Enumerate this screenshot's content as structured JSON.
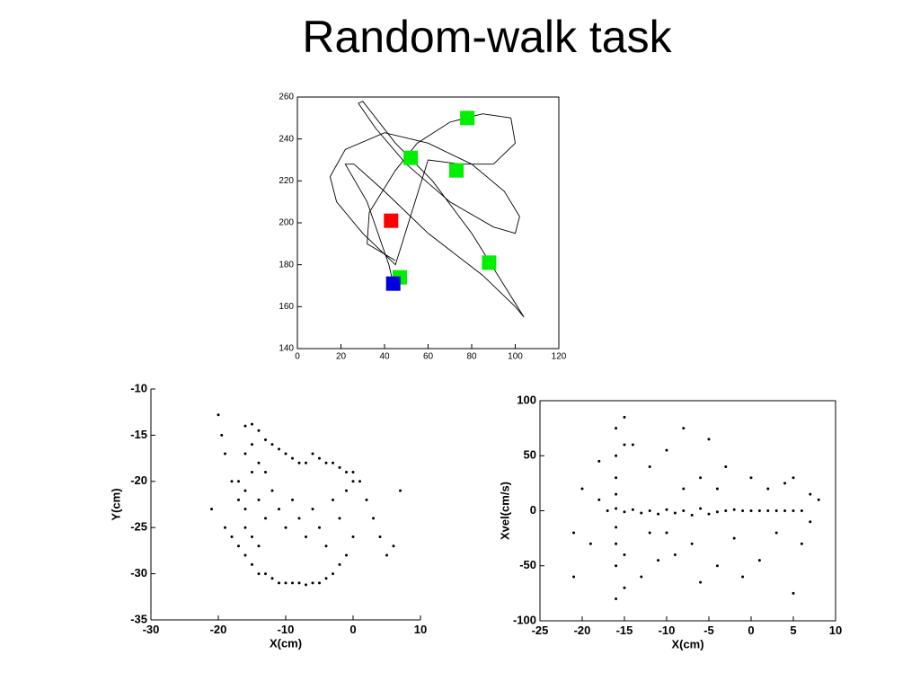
{
  "title": "Random-walk task",
  "chart_data": [
    {
      "type": "line",
      "box": true,
      "xlim": [
        0,
        120
      ],
      "xticks": [
        0,
        20,
        40,
        60,
        80,
        100,
        120
      ],
      "ylim": [
        140,
        260
      ],
      "yticks": [
        140,
        160,
        180,
        200,
        220,
        240,
        260
      ],
      "series": [
        {
          "style": "line",
          "color": "#000000",
          "x": [
            44,
            42,
            32,
            22,
            26,
            40,
            60,
            85,
            100,
            104,
            95,
            80,
            62,
            45,
            30,
            28,
            36,
            50,
            70,
            90,
            100,
            102,
            95,
            80,
            60,
            40,
            22,
            15,
            18,
            30,
            45,
            60,
            75,
            90,
            100,
            98,
            85,
            70,
            55,
            45,
            33,
            32,
            45
          ],
          "values": [
            171,
            180,
            210,
            228,
            228,
            215,
            195,
            175,
            160,
            155,
            170,
            195,
            220,
            238,
            258,
            257,
            245,
            228,
            210,
            198,
            195,
            203,
            215,
            228,
            238,
            243,
            235,
            222,
            210,
            195,
            180,
            230,
            228,
            228,
            238,
            250,
            252,
            248,
            238,
            225,
            205,
            190,
            182
          ]
        },
        {
          "style": "square",
          "color": "#00ee00",
          "x": [
            78,
            52,
            73,
            88,
            47
          ],
          "values": [
            250,
            231,
            225,
            181,
            174
          ]
        },
        {
          "style": "square",
          "color": "#ff0000",
          "x": [
            43
          ],
          "values": [
            201
          ]
        },
        {
          "style": "square",
          "color": "#0000dd",
          "x": [
            44
          ],
          "values": [
            171
          ]
        }
      ]
    },
    {
      "type": "scatter",
      "box": false,
      "color": "#000000",
      "xlabel": "X(cm)",
      "ylabel": "Y(cm)",
      "xlim": [
        -30,
        10
      ],
      "xticks": [
        -30,
        -20,
        -10,
        0,
        10
      ],
      "ylim": [
        -35,
        -10
      ],
      "yticks": [
        -35,
        -30,
        -25,
        -20,
        -15,
        -10
      ],
      "x": [
        -21,
        -20,
        -19.5,
        -19,
        -18,
        -17,
        -16,
        -15,
        -14,
        -13,
        -12,
        -11,
        -10,
        -9,
        -8,
        -7,
        -6,
        -5,
        -4,
        -3,
        -2,
        -1,
        0,
        1,
        2,
        3,
        4,
        5,
        6,
        7,
        -19,
        -18,
        -17,
        -16,
        -15,
        -14,
        -13,
        -12,
        -11,
        -10,
        -9,
        -8,
        -7,
        -6,
        -5,
        -4,
        -3,
        -2,
        -1,
        0,
        -17,
        -16,
        -15,
        -14,
        -13,
        -12,
        -11,
        -10,
        -9,
        -8,
        -7,
        -6,
        -5,
        -4,
        -3,
        -2,
        -1,
        0,
        -16,
        -15,
        -14,
        -13,
        -16,
        -16,
        -15,
        -14
      ],
      "values": [
        -23,
        -12.8,
        -15,
        -17,
        -20,
        -22,
        -14,
        -13.8,
        -14.5,
        -15.5,
        -16,
        -16.5,
        -17,
        -17.5,
        -18,
        -18,
        -17,
        -17.5,
        -18,
        -18,
        -18.5,
        -19,
        -19,
        -20,
        -22,
        -24,
        -26,
        -28,
        -27,
        -21,
        -25,
        -26,
        -27,
        -28,
        -29,
        -30,
        -30,
        -30.5,
        -31,
        -31,
        -31,
        -31,
        -31.2,
        -31,
        -31,
        -30.5,
        -30,
        -29,
        -28,
        -26,
        -20,
        -21,
        -19,
        -22,
        -24,
        -21,
        -23,
        -25,
        -22,
        -24,
        -26,
        -23,
        -25,
        -27,
        -22,
        -24,
        -21,
        -20,
        -17,
        -16,
        -18,
        -19,
        -23,
        -25,
        -26,
        -27
      ]
    },
    {
      "type": "scatter",
      "box": true,
      "color": "#000000",
      "xlabel": "X(cm)",
      "ylabel": "Xvel(cm/s)",
      "xlim": [
        -25,
        10
      ],
      "xticks": [
        -25,
        -20,
        -15,
        -10,
        -5,
        0,
        5,
        10
      ],
      "ylim": [
        -100,
        100
      ],
      "yticks": [
        -100,
        -50,
        0,
        50,
        100
      ],
      "x": [
        -17,
        -16,
        -15,
        -14,
        -13,
        -12,
        -11,
        -10,
        -9,
        -8,
        -7,
        -6,
        -5,
        -4,
        -3,
        -2,
        -1,
        0,
        1,
        2,
        3,
        4,
        5,
        6,
        -16,
        -16,
        -16,
        -16,
        -16,
        -16,
        -16,
        -16,
        -15,
        -15,
        -15,
        -15,
        -21,
        -21,
        -20,
        -19,
        -18,
        -18,
        -14,
        -13,
        -12,
        -11,
        -10,
        -9,
        -8,
        -7,
        -6,
        -6,
        -5,
        -4,
        -3,
        -2,
        -1,
        0,
        1,
        2,
        3,
        4,
        5,
        5,
        6,
        7,
        8,
        7,
        -12,
        -10,
        -8,
        -4
      ],
      "values": [
        0,
        2,
        -1,
        1,
        -2,
        0,
        -3,
        1,
        -2,
        0,
        -4,
        2,
        -3,
        -1,
        0,
        1,
        0,
        0,
        0,
        0,
        0,
        0,
        0,
        0,
        75,
        50,
        30,
        15,
        -15,
        -30,
        -50,
        -80,
        60,
        -40,
        -70,
        85,
        -60,
        -20,
        20,
        -30,
        10,
        45,
        60,
        -60,
        40,
        -45,
        55,
        -40,
        75,
        -30,
        30,
        -65,
        65,
        -50,
        40,
        -25,
        -60,
        30,
        -45,
        20,
        -20,
        25,
        -75,
        30,
        -30,
        15,
        10,
        -10,
        -20,
        -20,
        20,
        20
      ]
    }
  ]
}
